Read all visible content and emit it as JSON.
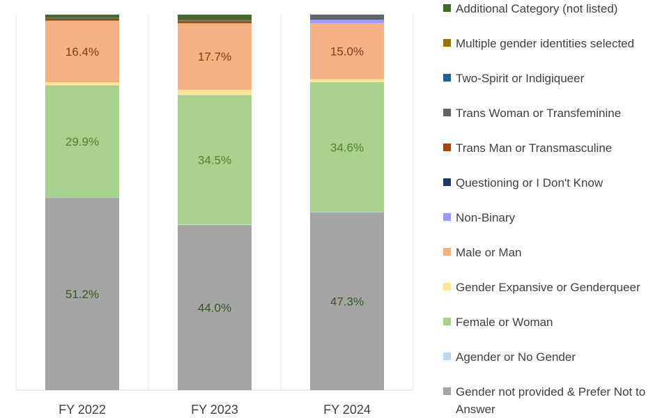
{
  "chart_data": {
    "type": "bar",
    "stacked": true,
    "grid": "vertical separators",
    "legend_position": "right",
    "categories": [
      "FY 2022",
      "FY 2023",
      "FY 2024"
    ],
    "ylim": [
      0,
      100
    ],
    "series": [
      {
        "name": "Gender not provided & Prefer Not to Answer",
        "color": "#A5A5A5",
        "label_color": "#375623",
        "values": [
          51.2,
          44.0,
          47.3
        ],
        "labels": [
          "51.2%",
          "44.0%",
          "47.3%"
        ]
      },
      {
        "name": "Agender or No Gender",
        "color": "#BDD7EE",
        "values": [
          0.1,
          0.1,
          0.1
        ],
        "labels": [
          "",
          "",
          ""
        ]
      },
      {
        "name": "Female or Woman",
        "color": "#A9D18E",
        "label_color": "#548235",
        "values": [
          29.9,
          34.5,
          34.6
        ],
        "labels": [
          "29.9%",
          "34.5%",
          "34.6%"
        ]
      },
      {
        "name": "Gender Expansive or Genderqueer",
        "color": "#FFE699",
        "values": [
          0.8,
          1.4,
          0.8
        ],
        "labels": [
          "",
          "",
          ""
        ]
      },
      {
        "name": "Male or Man",
        "color": "#F4B183",
        "label_color": "#843C0C",
        "values": [
          16.4,
          17.7,
          15.0
        ],
        "labels": [
          "16.4%",
          "17.7%",
          "15.0%"
        ]
      },
      {
        "name": "Non-Binary",
        "color": "#9999FF",
        "values": [
          0.0,
          0.0,
          0.9
        ],
        "labels": [
          "",
          "",
          ""
        ]
      },
      {
        "name": "Questioning or I Don't Know",
        "color": "#203864",
        "values": [
          0.0,
          0.0,
          0.1
        ],
        "labels": [
          "",
          "",
          ""
        ]
      },
      {
        "name": "Trans Man or Transmasculine",
        "color": "#9E480E",
        "values": [
          0.5,
          0.5,
          0.1
        ],
        "labels": [
          "",
          "",
          ""
        ]
      },
      {
        "name": "Trans Woman or Transfeminine",
        "color": "#636363",
        "values": [
          0.2,
          0.2,
          0.8
        ],
        "labels": [
          "",
          "",
          ""
        ]
      },
      {
        "name": "Two-Spirit or Indigiqueer",
        "color": "#255E91",
        "values": [
          0.1,
          0.1,
          0.1
        ],
        "labels": [
          "",
          "",
          ""
        ]
      },
      {
        "name": "Multiple gender identities selected",
        "color": "#997300",
        "values": [
          0.0,
          0.1,
          0.0
        ],
        "labels": [
          "",
          "",
          ""
        ]
      },
      {
        "name": "Additional Category (not listed)",
        "color": "#43682B",
        "values": [
          0.8,
          1.4,
          0.2
        ],
        "labels": [
          "",
          "",
          ""
        ]
      }
    ]
  },
  "legend": [
    "Additional Category (not listed)",
    "Multiple gender identities selected",
    "Two-Spirit or Indigiqueer",
    "Trans Woman or Transfeminine",
    "Trans Man or Transmasculine",
    "Questioning or I Don't Know",
    "Non-Binary",
    "Male or Man",
    "Gender Expansive or Genderqueer",
    "Female or Woman",
    "Agender or No Gender",
    "Gender not provided & Prefer Not to Answer"
  ]
}
